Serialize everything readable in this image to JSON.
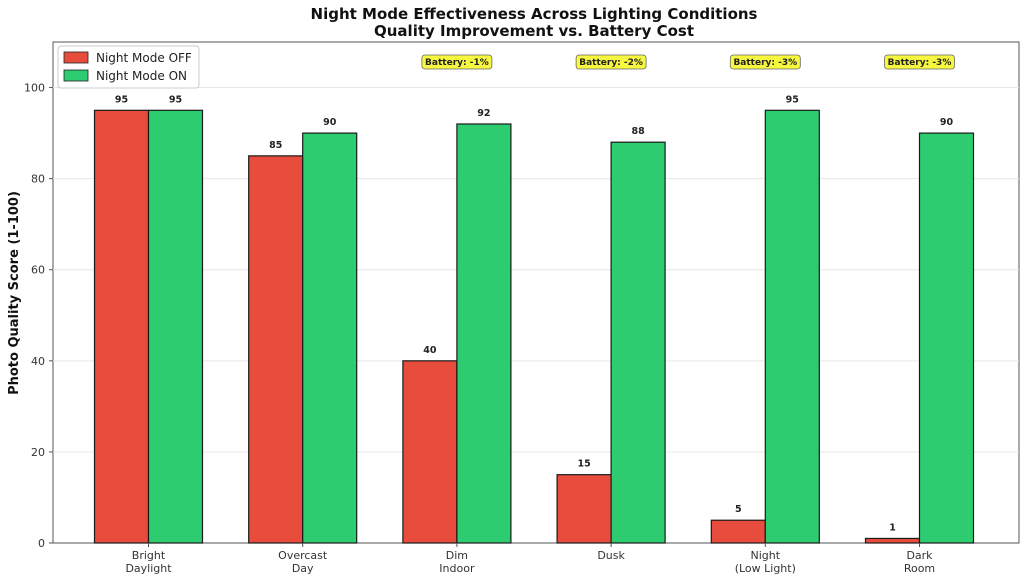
{
  "chart_data": {
    "type": "bar",
    "title": "Night Mode Effectiveness Across Lighting Conditions",
    "subtitle": "Quality Improvement vs. Battery Cost",
    "xlabel": "",
    "ylabel": "Photo Quality Score (1-100)",
    "ylim": [
      0,
      110
    ],
    "yticks": [
      0,
      20,
      40,
      60,
      80,
      100
    ],
    "grid": true,
    "legend_position": "top-left",
    "categories": [
      [
        "Bright",
        "Daylight"
      ],
      [
        "Overcast",
        "Day"
      ],
      [
        "Dim",
        "Indoor"
      ],
      [
        "Dusk"
      ],
      [
        "Night",
        "(Low Light)"
      ],
      [
        "Dark",
        "Room"
      ]
    ],
    "series": [
      {
        "name": "Night Mode OFF",
        "color": "#e74c3c",
        "values": [
          95,
          85,
          40,
          15,
          5,
          1
        ]
      },
      {
        "name": "Night Mode ON",
        "color": "#2ecc71",
        "values": [
          95,
          90,
          92,
          88,
          95,
          90
        ]
      }
    ],
    "annotations": [
      {
        "category_index": 2,
        "text": "Battery: -1%"
      },
      {
        "category_index": 3,
        "text": "Battery: -2%"
      },
      {
        "category_index": 4,
        "text": "Battery: -3%"
      },
      {
        "category_index": 5,
        "text": "Battery: -3%"
      }
    ],
    "annotation_color": "#f7f740"
  }
}
